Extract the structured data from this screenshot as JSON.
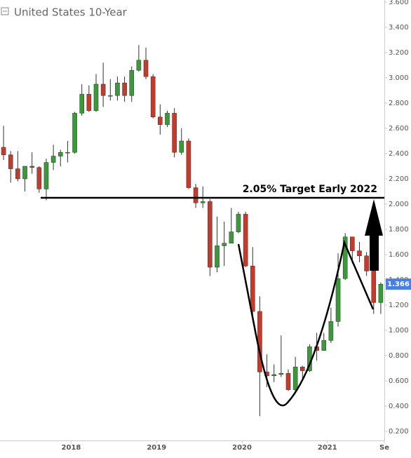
{
  "chart_data": {
    "type": "candlestick",
    "title": "United States 10-Year",
    "annotation": "2.05% Target Early 2022",
    "target": 2.05,
    "last_price": 1.366,
    "up_color": "#3a9a3a",
    "down_color": "#c23b2c",
    "tag_color": "#4a7fe0",
    "x": [
      "2017-03",
      "2017-04",
      "2017-05",
      "2017-06",
      "2017-07",
      "2017-08",
      "2017-09",
      "2017-10",
      "2017-11",
      "2017-12",
      "2018-01",
      "2018-02",
      "2018-03",
      "2018-04",
      "2018-05",
      "2018-06",
      "2018-07",
      "2018-08",
      "2018-09",
      "2018-10",
      "2018-11",
      "2018-12",
      "2019-01",
      "2019-02",
      "2019-03",
      "2019-04",
      "2019-05",
      "2019-06",
      "2019-07",
      "2019-08",
      "2019-09",
      "2019-10",
      "2019-11",
      "2019-12",
      "2020-01",
      "2020-02",
      "2020-03",
      "2020-04",
      "2020-05",
      "2020-06",
      "2020-07",
      "2020-08",
      "2020-09",
      "2020-10",
      "2020-11",
      "2020-12",
      "2021-01",
      "2021-02",
      "2021-03",
      "2021-04",
      "2021-05",
      "2021-06",
      "2021-07",
      "2021-08"
    ],
    "open": [
      2.45,
      2.39,
      2.28,
      2.2,
      2.3,
      2.29,
      2.12,
      2.33,
      2.38,
      2.41,
      2.41,
      2.72,
      2.87,
      2.74,
      2.95,
      2.86,
      2.86,
      2.96,
      2.86,
      3.06,
      3.14,
      3.01,
      2.69,
      2.63,
      2.72,
      2.41,
      2.5,
      2.13,
      2.01,
      2.02,
      1.5,
      1.67,
      1.69,
      1.78,
      1.92,
      1.51,
      1.15,
      0.67,
      0.64,
      0.65,
      0.66,
      0.53,
      0.71,
      0.68,
      0.87,
      0.84,
      0.92,
      1.07,
      1.41,
      1.74,
      1.63,
      1.59,
      1.47,
      1.22
    ],
    "high": [
      2.62,
      2.42,
      2.42,
      2.3,
      2.41,
      2.3,
      2.36,
      2.47,
      2.43,
      2.5,
      2.73,
      2.95,
      2.94,
      3.03,
      3.12,
      2.99,
      3.01,
      3.01,
      3.09,
      3.26,
      3.24,
      3.03,
      2.79,
      2.74,
      2.76,
      2.6,
      2.52,
      2.16,
      2.14,
      2.04,
      1.9,
      1.86,
      1.97,
      1.94,
      1.94,
      1.66,
      1.27,
      0.81,
      0.73,
      0.96,
      0.69,
      0.79,
      0.72,
      0.89,
      0.98,
      0.98,
      1.18,
      1.61,
      1.77,
      1.74,
      1.7,
      1.62,
      1.48,
      1.38
    ],
    "low": [
      2.35,
      2.17,
      2.18,
      2.1,
      2.24,
      2.09,
      2.03,
      2.27,
      2.3,
      2.33,
      2.4,
      2.7,
      2.73,
      2.73,
      2.77,
      2.82,
      2.82,
      2.81,
      2.81,
      3.05,
      2.99,
      2.68,
      2.55,
      2.61,
      2.37,
      2.39,
      2.12,
      1.97,
      1.97,
      1.43,
      1.46,
      1.51,
      1.69,
      1.77,
      1.5,
      1.12,
      0.32,
      0.55,
      0.59,
      0.63,
      0.52,
      0.5,
      0.62,
      0.67,
      0.76,
      0.84,
      0.9,
      1.03,
      1.4,
      1.53,
      1.54,
      1.43,
      1.13,
      1.13
    ],
    "close": [
      2.39,
      2.28,
      2.2,
      2.3,
      2.29,
      2.12,
      2.33,
      2.38,
      2.41,
      2.41,
      2.72,
      2.87,
      2.74,
      2.95,
      2.86,
      2.86,
      2.96,
      2.86,
      3.06,
      3.14,
      3.01,
      2.69,
      2.63,
      2.72,
      2.41,
      2.5,
      2.13,
      2.01,
      2.02,
      1.5,
      1.67,
      1.69,
      1.78,
      1.92,
      1.51,
      1.15,
      0.67,
      0.64,
      0.65,
      0.66,
      0.53,
      0.71,
      0.68,
      0.87,
      0.84,
      0.92,
      1.07,
      1.41,
      1.74,
      1.63,
      1.59,
      1.47,
      1.22,
      1.366
    ],
    "xlim": [
      "2017-03",
      "2021-09"
    ],
    "xticks": [
      {
        "value": "2018-01",
        "label": "2018"
      },
      {
        "value": "2019-01",
        "label": "2019"
      },
      {
        "value": "2020-01",
        "label": "2020"
      },
      {
        "value": "2021-01",
        "label": "2021"
      },
      {
        "value": "2021-09",
        "label": "Se"
      }
    ],
    "ylim": [
      0.2,
      3.6
    ],
    "yticks": [
      {
        "value": 0.2,
        "label": "0.200"
      },
      {
        "value": 0.4,
        "label": "0.400"
      },
      {
        "value": 0.6,
        "label": "0.600"
      },
      {
        "value": 0.8,
        "label": "0.800"
      },
      {
        "value": 1.0,
        "label": "1.000"
      },
      {
        "value": 1.2,
        "label": "1.200"
      },
      {
        "value": 1.4,
        "label": "1.400"
      },
      {
        "value": 1.6,
        "label": "1.600"
      },
      {
        "value": 1.8,
        "label": "1.800"
      },
      {
        "value": 2.0,
        "label": "2.000"
      },
      {
        "value": 2.2,
        "label": "2.200"
      },
      {
        "value": 2.4,
        "label": "2.400"
      },
      {
        "value": 2.6,
        "label": "2.600"
      },
      {
        "value": 2.8,
        "label": "2.800"
      },
      {
        "value": 3.0,
        "label": "3.000"
      },
      {
        "value": 3.2,
        "label": "3.200"
      },
      {
        "value": 3.4,
        "label": "3.400"
      },
      {
        "value": 3.6,
        "label": "3.600"
      }
    ]
  }
}
